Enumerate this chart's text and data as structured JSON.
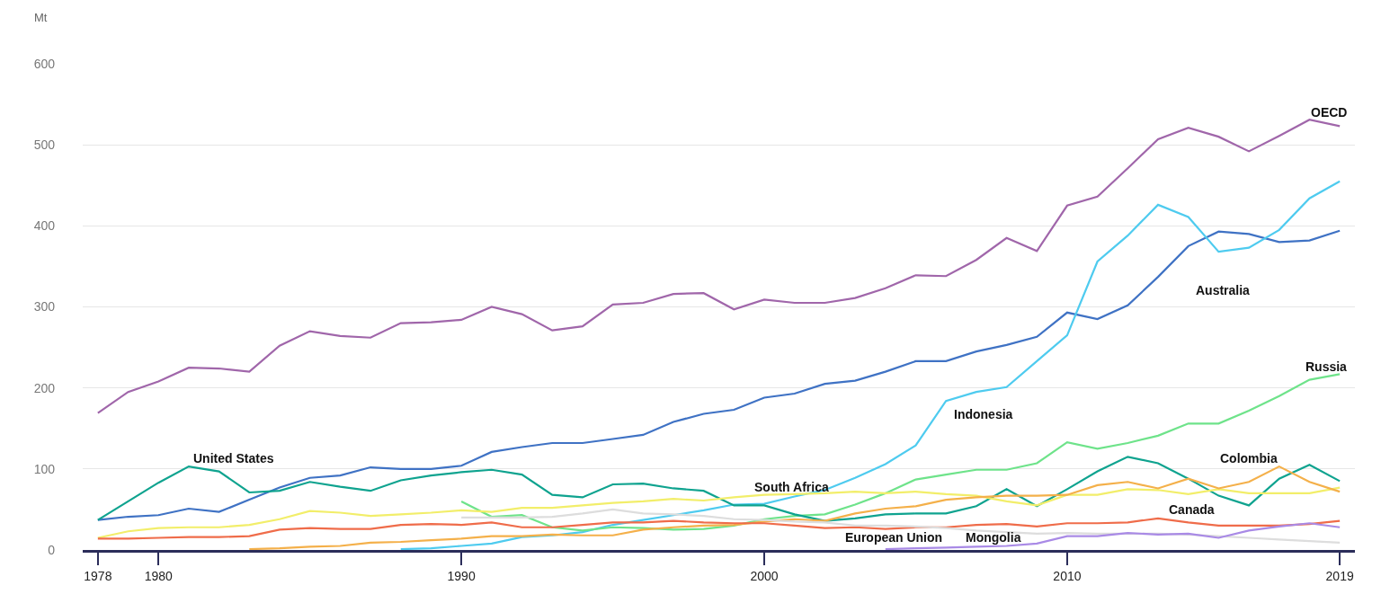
{
  "chart_data": {
    "type": "line",
    "ylabel": "Mt",
    "x": [
      1978,
      1979,
      1980,
      1981,
      1982,
      1983,
      1984,
      1985,
      1986,
      1987,
      1988,
      1989,
      1990,
      1991,
      1992,
      1993,
      1994,
      1995,
      1996,
      1997,
      1998,
      1999,
      2000,
      2001,
      2002,
      2003,
      2004,
      2005,
      2006,
      2007,
      2008,
      2009,
      2010,
      2011,
      2012,
      2013,
      2014,
      2015,
      2016,
      2017,
      2018,
      2019
    ],
    "series": [
      {
        "name": "OECD",
        "color": "#a066aa",
        "values": [
          169,
          195,
          208,
          225,
          224,
          220,
          252,
          270,
          264,
          262,
          280,
          281,
          284,
          300,
          291,
          271,
          276,
          303,
          305,
          316,
          317,
          297,
          309,
          305,
          305,
          311,
          323,
          339,
          338,
          358,
          385,
          369,
          425,
          436,
          471,
          507,
          521,
          510,
          492,
          511,
          531,
          523
        ]
      },
      {
        "name": "Australia",
        "color": "#3f72c4",
        "values": [
          37,
          41,
          43,
          51,
          47,
          62,
          77,
          89,
          92,
          102,
          100,
          100,
          104,
          121,
          127,
          132,
          132,
          137,
          142,
          158,
          168,
          173,
          188,
          193,
          205,
          209,
          220,
          233,
          233,
          245,
          253,
          263,
          293,
          285,
          302,
          337,
          375,
          393,
          390,
          380,
          382,
          394
        ]
      },
      {
        "name": "Indonesia",
        "color": "#4ecbef",
        "values": [
          null,
          null,
          null,
          null,
          null,
          null,
          null,
          null,
          null,
          null,
          1,
          2,
          5,
          8,
          16,
          18,
          22,
          31,
          37,
          43,
          49,
          56,
          57,
          66,
          74,
          89,
          106,
          129,
          184,
          195,
          201,
          233,
          265,
          356,
          388,
          426,
          411,
          368,
          373,
          395,
          434,
          455
        ]
      },
      {
        "name": "Russia",
        "color": "#6ee38a",
        "values": [
          null,
          null,
          null,
          null,
          null,
          null,
          null,
          null,
          null,
          null,
          null,
          null,
          60,
          41,
          43,
          28,
          24,
          28,
          27,
          25,
          26,
          30,
          38,
          42,
          44,
          56,
          70,
          87,
          93,
          99,
          99,
          107,
          133,
          125,
          132,
          141,
          156,
          156,
          172,
          190,
          210,
          217
        ]
      },
      {
        "name": "United States",
        "color": "#0fa38f",
        "values": [
          37,
          60,
          83,
          103,
          97,
          71,
          73,
          84,
          78,
          73,
          86,
          92,
          96,
          99,
          93,
          68,
          65,
          81,
          82,
          76,
          73,
          55,
          55,
          44,
          36,
          39,
          44,
          45,
          45,
          54,
          75,
          54,
          75,
          97,
          115,
          107,
          88,
          67,
          55,
          88,
          105,
          85
        ]
      },
      {
        "name": "South Africa",
        "color": "#f2ee6a",
        "values": [
          15,
          23,
          27,
          28,
          28,
          31,
          38,
          48,
          46,
          42,
          44,
          46,
          49,
          47,
          52,
          52,
          55,
          58,
          60,
          63,
          61,
          65,
          68,
          69,
          70,
          72,
          70,
          72,
          69,
          67,
          60,
          55,
          68,
          68,
          75,
          74,
          69,
          75,
          70,
          70,
          70,
          77
        ]
      },
      {
        "name": "Colombia",
        "color": "#f4b04a",
        "values": [
          null,
          null,
          null,
          null,
          null,
          1,
          2,
          4,
          5,
          9,
          10,
          12,
          14,
          17,
          17,
          19,
          18,
          18,
          25,
          28,
          30,
          31,
          35,
          38,
          36,
          45,
          51,
          54,
          62,
          65,
          67,
          67,
          68,
          80,
          84,
          76,
          88,
          76,
          84,
          103,
          84,
          72
        ]
      },
      {
        "name": "Canada",
        "color": "#ef6c4a",
        "values": [
          14,
          14,
          15,
          16,
          16,
          17,
          25,
          27,
          26,
          26,
          31,
          32,
          31,
          34,
          28,
          28,
          31,
          34,
          34,
          36,
          34,
          33,
          33,
          30,
          27,
          28,
          26,
          28,
          28,
          31,
          32,
          29,
          33,
          33,
          34,
          39,
          34,
          30,
          30,
          30,
          32,
          36
        ]
      },
      {
        "name": "European Union",
        "color": "#dddddd",
        "values": [
          null,
          null,
          null,
          null,
          null,
          null,
          null,
          null,
          null,
          null,
          null,
          null,
          40,
          40,
          40,
          41,
          45,
          50,
          45,
          44,
          42,
          38,
          37,
          35,
          34,
          30,
          30,
          29,
          27,
          24,
          22,
          20,
          21,
          20,
          20,
          20,
          19,
          17,
          15,
          13,
          11,
          9
        ]
      },
      {
        "name": "Mongolia",
        "color": "#a98ae6",
        "values": [
          null,
          null,
          null,
          null,
          null,
          null,
          null,
          null,
          null,
          null,
          null,
          null,
          null,
          null,
          null,
          null,
          null,
          null,
          null,
          null,
          null,
          null,
          null,
          null,
          null,
          null,
          1,
          2,
          3,
          4,
          5,
          8,
          17,
          17,
          21,
          19,
          20,
          15,
          24,
          29,
          33,
          28
        ]
      }
    ],
    "xlim": [
      1977.5,
      2019.5
    ],
    "xticks": [
      1978,
      1980,
      1990,
      2000,
      2010,
      2019
    ],
    "ylim": [
      0,
      600
    ],
    "yticks": [
      0,
      100,
      200,
      300,
      400,
      500,
      600
    ],
    "grid": "y",
    "legend": false,
    "marker": "none",
    "line_style": "solid"
  }
}
